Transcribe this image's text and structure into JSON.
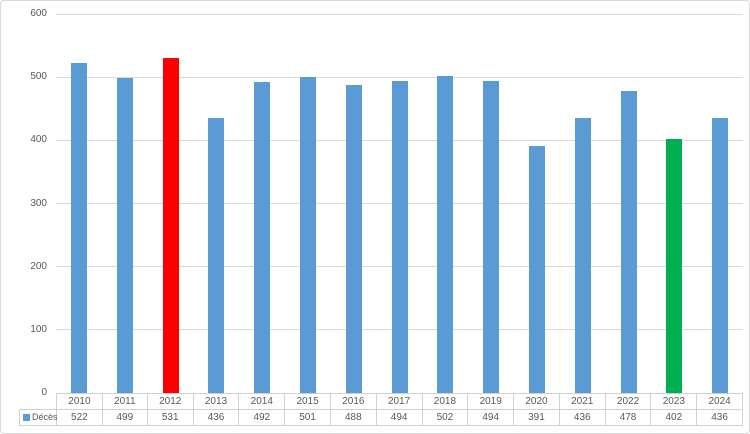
{
  "chart": {
    "colors": {
      "bar_default": "#5B9BD5",
      "bar_highlight_red": "#FF0000",
      "bar_highlight_green": "#00B050",
      "gridline": "#D9D9D9",
      "table_border": "#D0D0D0",
      "text": "#595959",
      "chart_border": "#D9D9D9",
      "background": "#FFFFFF"
    }
  },
  "chart_data": {
    "type": "bar",
    "title": "",
    "categories": [
      "2010",
      "2011",
      "2012",
      "2013",
      "2014",
      "2015",
      "2016",
      "2017",
      "2018",
      "2019",
      "2020",
      "2021",
      "2022",
      "2023",
      "2024"
    ],
    "series": [
      {
        "name": "Décès",
        "values": [
          522,
          499,
          531,
          436,
          492,
          501,
          488,
          494,
          502,
          494,
          391,
          436,
          478,
          402,
          436
        ],
        "bar_colors": [
          "#5B9BD5",
          "#5B9BD5",
          "#FF0000",
          "#5B9BD5",
          "#5B9BD5",
          "#5B9BD5",
          "#5B9BD5",
          "#5B9BD5",
          "#5B9BD5",
          "#5B9BD5",
          "#5B9BD5",
          "#5B9BD5",
          "#5B9BD5",
          "#00B050",
          "#5B9BD5"
        ]
      }
    ],
    "xlabel": "",
    "ylabel": "",
    "ylim": [
      0,
      600
    ],
    "yticks": [
      0,
      100,
      200,
      300,
      400,
      500,
      600
    ],
    "grid": "horizontal",
    "legend": {
      "label": "Décès",
      "marker_color": "#5B9BD5",
      "position": "bottom-left-of-data-table"
    },
    "data_table": true
  }
}
